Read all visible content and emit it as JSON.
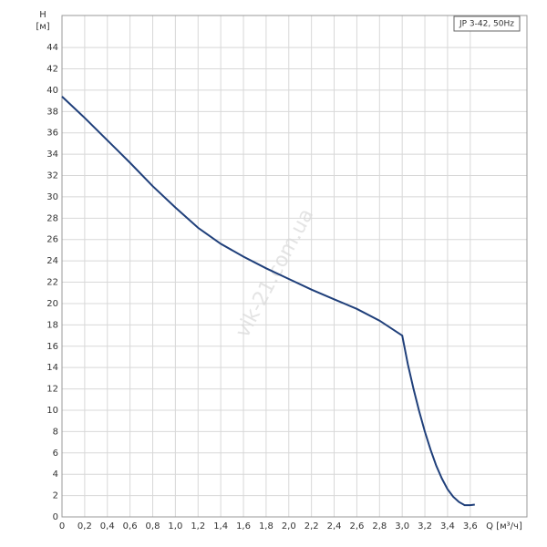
{
  "chart_data": {
    "type": "line",
    "x_label": "Q [м³/ч]",
    "y_label": "H",
    "y_unit": "[м]",
    "watermark": "vik-21.com.ua",
    "x": [
      0,
      0.2,
      0.4,
      0.6,
      0.8,
      1.0,
      1.2,
      1.4,
      1.6,
      1.8,
      2.0,
      2.2,
      2.4,
      2.6,
      2.8,
      3.0,
      3.05,
      3.1,
      3.15,
      3.2,
      3.25,
      3.3,
      3.35,
      3.4,
      3.45,
      3.5,
      3.55,
      3.6,
      3.64
    ],
    "series": [
      {
        "name": "JP 3-42, 50Hz",
        "color": "#1f3f7a",
        "values": [
          39.4,
          37.4,
          35.3,
          33.2,
          31.0,
          29.0,
          27.1,
          25.6,
          24.4,
          23.3,
          22.3,
          21.3,
          20.4,
          19.5,
          18.4,
          17.0,
          14.3,
          12.0,
          9.9,
          8.0,
          6.3,
          4.8,
          3.6,
          2.6,
          1.9,
          1.4,
          1.1,
          1.1,
          1.15
        ]
      }
    ],
    "xlim": [
      0,
      4.1
    ],
    "xticks": [
      0,
      {
        "value": 0.2,
        "label": "0,2"
      },
      {
        "value": 0.4,
        "label": "0,4"
      },
      {
        "value": 0.6,
        "label": "0,6"
      },
      {
        "value": 0.8,
        "label": "0,8"
      },
      {
        "value": 1.0,
        "label": "1,0"
      },
      {
        "value": 1.2,
        "label": "1,2"
      },
      {
        "value": 1.4,
        "label": "1,4"
      },
      {
        "value": 1.6,
        "label": "1,6"
      },
      {
        "value": 1.8,
        "label": "1,8"
      },
      {
        "value": 2.0,
        "label": "2,0"
      },
      {
        "value": 2.2,
        "label": "2,2"
      },
      {
        "value": 2.4,
        "label": "2,4"
      },
      {
        "value": 2.6,
        "label": "2,6"
      },
      {
        "value": 2.8,
        "label": "2,8"
      },
      {
        "value": 3.0,
        "label": "3,0"
      },
      {
        "value": 3.2,
        "label": "3,2"
      },
      {
        "value": 3.4,
        "label": "3,4"
      },
      {
        "value": 3.6,
        "label": "3,6"
      }
    ],
    "ylim": [
      0,
      47
    ],
    "yticks": [
      0,
      2,
      4,
      6,
      8,
      10,
      12,
      14,
      16,
      18,
      20,
      22,
      24,
      26,
      28,
      30,
      32,
      34,
      36,
      38,
      40,
      42,
      44
    ],
    "grid": true
  }
}
